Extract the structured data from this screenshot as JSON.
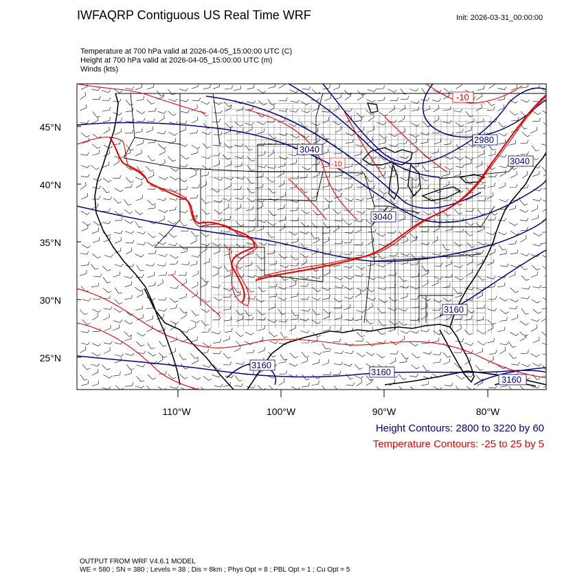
{
  "header": {
    "title": "IWFAQRP Contiguous US Real Time WRF",
    "init": "Init: 2026-03-31_00:00:00"
  },
  "subtitles": [
    "Temperature at 700 hPa valid at 2026-04-05_15:00:00 UTC   (C)",
    "Height at 700 hPa valid at 2026-04-05_15:00:00 UTC   (m)",
    "Winds   (kts)"
  ],
  "axes": {
    "lat_labels": [
      "45°N",
      "40°N",
      "35°N",
      "30°N",
      "25°N"
    ],
    "lon_labels": [
      "110°W",
      "100°W",
      "90°W",
      "80°W"
    ]
  },
  "contour_labels": {
    "height": [
      "3040",
      "2980",
      "3040",
      "3040",
      "3160",
      "3160",
      "3160",
      "3160"
    ],
    "temperature": [
      "-10",
      "-10"
    ]
  },
  "legend": {
    "height": "Height Contours: 2800 to 3220 by 60",
    "temperature": "Temperature Contours: -25 to 25 by 5"
  },
  "footer": {
    "line1": "OUTPUT FROM WRF V4.6.1 MODEL",
    "line2": "WE = 580 ; SN = 380 ; Levels = 38 ; Dis = 8km ; Phys Opt = 8 ; PBL Opt = 1 ; Cu Opt = 5"
  },
  "colors": {
    "height_contour": "#000080",
    "temperature_contour": "#e60000",
    "map_lines": "#000000"
  }
}
